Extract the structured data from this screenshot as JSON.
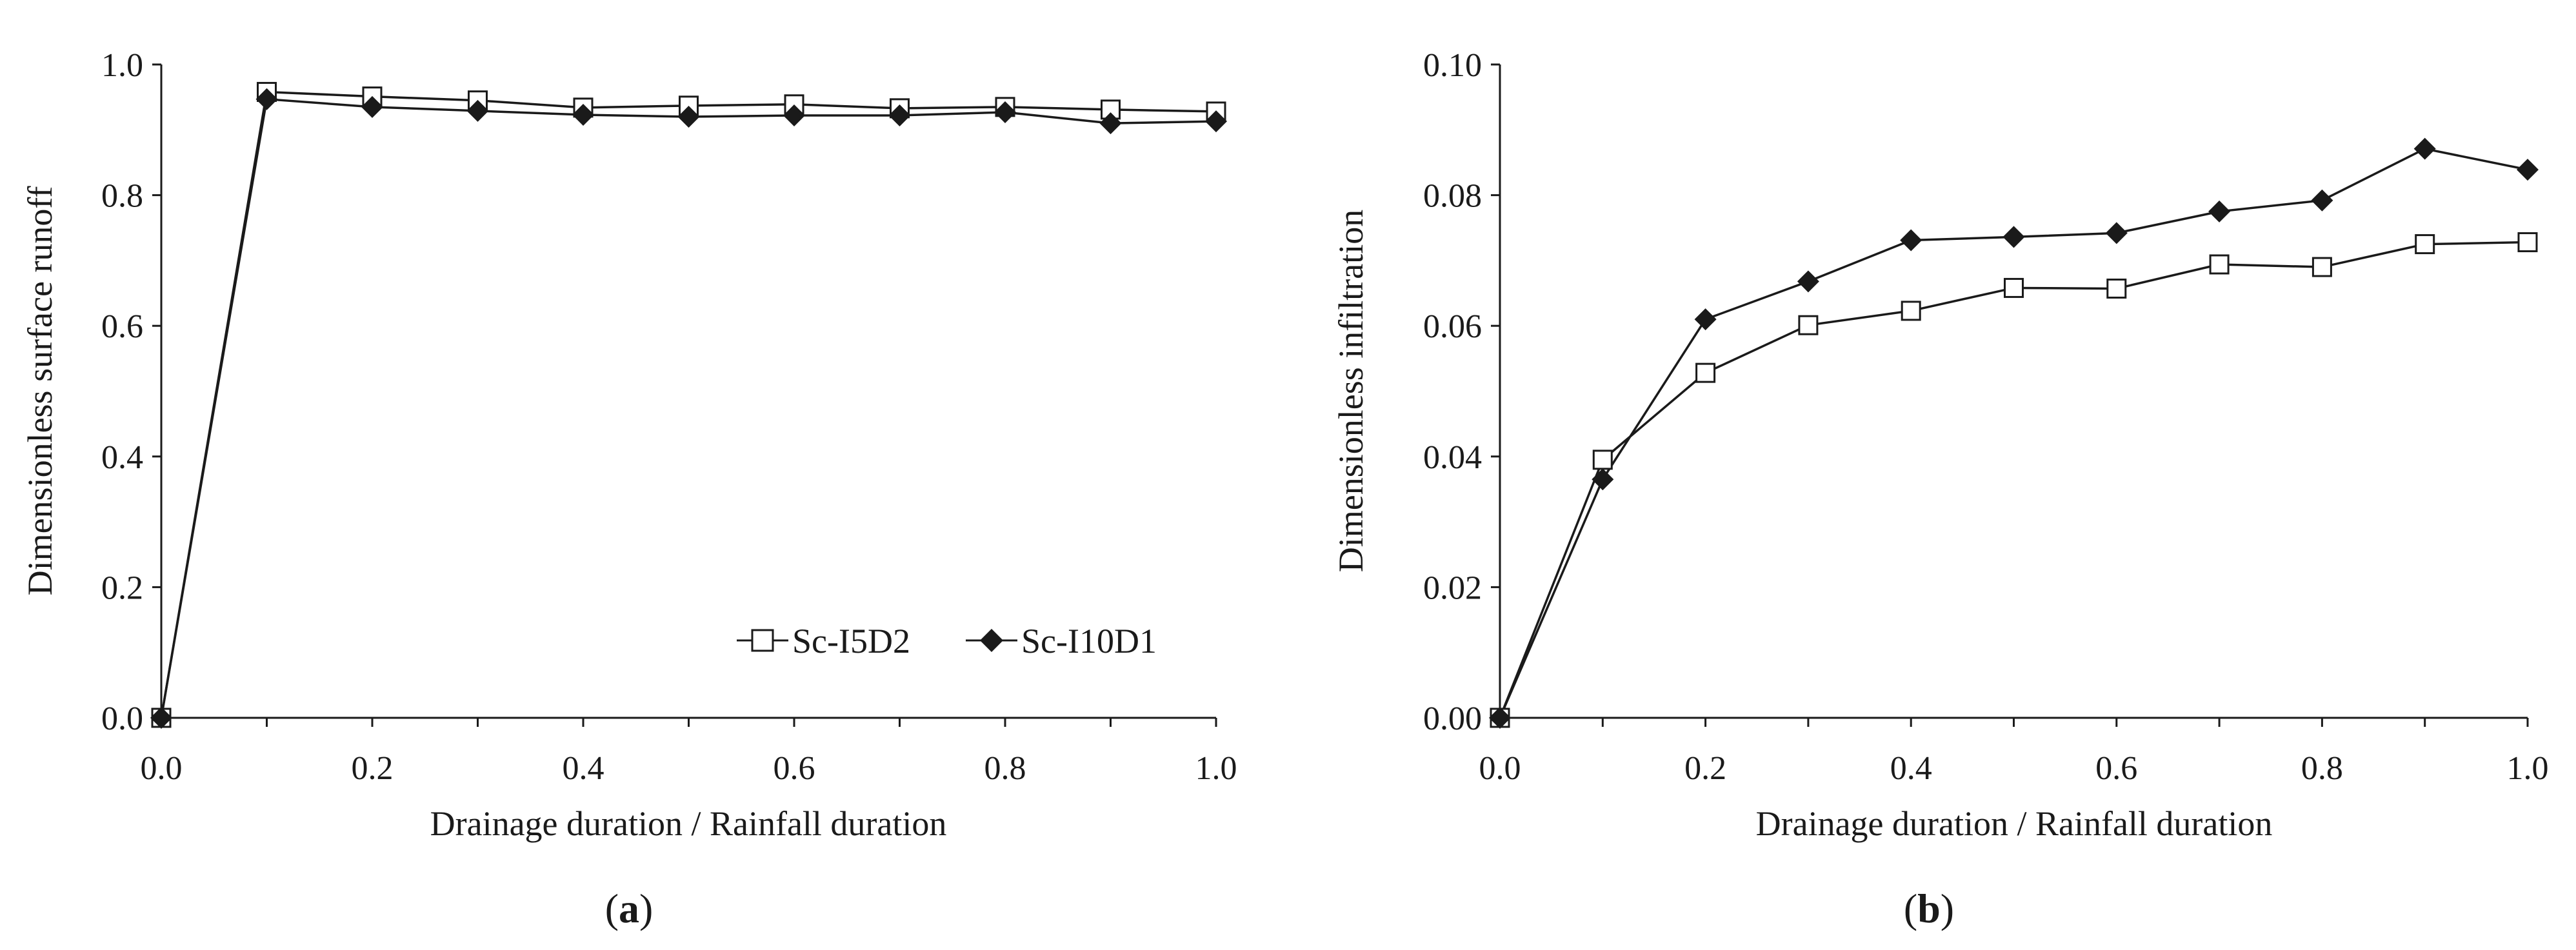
{
  "chart_data": [
    {
      "id": "a",
      "type": "line",
      "panel_label": {
        "open": "(",
        "letter": "a",
        "close": ")"
      },
      "xlabel": "Drainage duration / Rainfall duration",
      "ylabel": "Dimensionless surface runoff",
      "xlim": [
        0,
        1.0
      ],
      "ylim": [
        0,
        1.0
      ],
      "xticks": [
        "0.0",
        "0.2",
        "0.4",
        "0.6",
        "0.8",
        "1.0"
      ],
      "yticks": [
        "0.0",
        "0.2",
        "0.4",
        "0.6",
        "0.8",
        "1.0"
      ],
      "x": [
        0.0,
        0.1,
        0.2,
        0.3,
        0.4,
        0.5,
        0.6,
        0.7,
        0.8,
        0.9,
        1.0
      ],
      "series": [
        {
          "name": "Sc-I5D2",
          "marker": "open-square",
          "values": [
            0.0,
            0.958,
            0.951,
            0.945,
            0.934,
            0.937,
            0.939,
            0.933,
            0.935,
            0.931,
            0.928
          ]
        },
        {
          "name": "Sc-I10D1",
          "marker": "filled-diamond",
          "values": [
            0.0,
            0.947,
            0.935,
            0.929,
            0.923,
            0.92,
            0.922,
            0.922,
            0.927,
            0.91,
            0.913
          ]
        }
      ],
      "legend": {
        "position": "bottom-right",
        "entries": [
          "Sc-I5D2",
          "Sc-I10D1"
        ]
      },
      "grid": false
    },
    {
      "id": "b",
      "type": "line",
      "panel_label": {
        "open": "(",
        "letter": "b",
        "close": ")"
      },
      "xlabel": "Drainage duration / Rainfall duration",
      "ylabel": "Dimensionless infiltration",
      "xlim": [
        0,
        1.0
      ],
      "ylim": [
        0,
        0.1
      ],
      "xticks": [
        "0.0",
        "0.2",
        "0.4",
        "0.6",
        "0.8",
        "1.0"
      ],
      "yticks": [
        "0.00",
        "0.02",
        "0.04",
        "0.06",
        "0.08",
        "0.10"
      ],
      "x": [
        0.0,
        0.1,
        0.2,
        0.3,
        0.4,
        0.5,
        0.6,
        0.7,
        0.8,
        0.9,
        1.0
      ],
      "series": [
        {
          "name": "Sc-I5D2",
          "marker": "open-square",
          "values": [
            0.0,
            0.0395,
            0.0528,
            0.0601,
            0.0623,
            0.0658,
            0.0657,
            0.0694,
            0.069,
            0.0725,
            0.0728
          ]
        },
        {
          "name": "Sc-I10D1",
          "marker": "filled-diamond",
          "values": [
            0.0,
            0.0365,
            0.061,
            0.0668,
            0.0731,
            0.0736,
            0.0742,
            0.0775,
            0.0792,
            0.0871,
            0.0839
          ]
        }
      ],
      "grid": false
    }
  ]
}
